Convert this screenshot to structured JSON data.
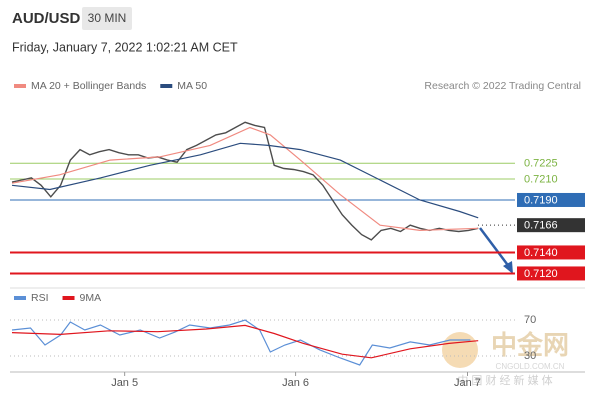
{
  "header": {
    "symbol": "AUD/USD",
    "timeframe": "30 MIN",
    "datetime": "Friday, January 7, 2022 1:02:21 AM CET",
    "source": "Research © 2022 Trading Central"
  },
  "watermark": {
    "brand": "中金网",
    "site": "CNGOLD.COM.CN",
    "tagline": "中 国 财 经 新 媒 体"
  },
  "chart_data": [
    {
      "type": "line",
      "xlim": [
        0,
        59
      ],
      "ylim": [
        0.7109,
        0.729
      ],
      "series": [
        {
          "color": "#4d4d4d",
          "x": [
            0,
            1,
            2,
            3,
            4,
            5,
            6,
            7,
            8,
            9,
            10,
            11,
            12,
            13,
            14,
            15,
            16,
            17,
            18,
            19,
            20,
            21,
            22,
            23,
            24,
            25,
            26,
            27,
            28,
            29,
            30,
            31,
            32,
            33,
            34,
            35,
            36,
            37,
            38,
            39,
            40,
            41,
            42,
            43,
            44,
            45,
            46,
            47,
            48
          ],
          "values": [
            0.7207,
            0.7209,
            0.7211,
            0.7204,
            0.7193,
            0.7204,
            0.7228,
            0.7238,
            0.7233,
            0.7236,
            0.7238,
            0.7235,
            0.7233,
            0.7233,
            0.723,
            0.7231,
            0.7228,
            0.7226,
            0.7238,
            0.7242,
            0.7247,
            0.7252,
            0.7254,
            0.7259,
            0.7264,
            0.7261,
            0.7259,
            0.7223,
            0.722,
            0.7219,
            0.7217,
            0.7214,
            0.7204,
            0.719,
            0.7176,
            0.7166,
            0.7157,
            0.7152,
            0.7161,
            0.7163,
            0.716,
            0.7166,
            0.7163,
            0.7161,
            0.7163,
            0.7161,
            0.716,
            0.7161,
            0.7163
          ]
        },
        {
          "name": "MA 20 + Bollinger Bands",
          "color": "#f08a80",
          "x": [
            0,
            4.9,
            10.1,
            15.2,
            20.4,
            24.5,
            26.6,
            29.7,
            33.8,
            37.9,
            42,
            48
          ],
          "values": [
            0.7206,
            0.7214,
            0.7228,
            0.7231,
            0.7242,
            0.7259,
            0.7252,
            0.7228,
            0.7195,
            0.7166,
            0.7161,
            0.7163
          ]
        },
        {
          "name": "MA 50",
          "color": "#2b4c7e",
          "x": [
            0,
            3.9,
            9.1,
            14.2,
            19.4,
            23.5,
            26.4,
            29.7,
            33.8,
            37.9,
            42,
            46.1,
            48
          ],
          "values": [
            0.7204,
            0.72,
            0.7211,
            0.7223,
            0.7233,
            0.7244,
            0.7242,
            0.7238,
            0.7228,
            0.7209,
            0.719,
            0.7179,
            0.7173
          ]
        }
      ],
      "levels": [
        {
          "value": 0.7225,
          "label": "0.7225",
          "color": "#9ccc65",
          "boxed": false
        },
        {
          "value": 0.721,
          "label": "0.7210",
          "color": "#9ccc65",
          "boxed": false
        },
        {
          "value": 0.719,
          "label": "0.7190",
          "color": "#2f6db5",
          "boxed": true
        },
        {
          "value": 0.7166,
          "label": "0.7166",
          "color": "#333333",
          "boxed": true,
          "dotted": true
        },
        {
          "value": 0.714,
          "label": "0.7140",
          "color": "#e0161e",
          "boxed": true
        },
        {
          "value": 0.712,
          "label": "0.7120",
          "color": "#e0161e",
          "boxed": true
        }
      ]
    },
    {
      "type": "line",
      "xlim": [
        0,
        59
      ],
      "ylim": [
        12.2,
        92.2
      ],
      "yticks": [
        70,
        30
      ],
      "xticks": [
        {
          "value": 11.6,
          "label": "Jan 5"
        },
        {
          "value": 29.2,
          "label": "Jan 6"
        },
        {
          "value": 46.9,
          "label": "Jan 7"
        }
      ],
      "series": [
        {
          "name": "RSI",
          "color": "#5b8fd6",
          "x": [
            0,
            1.9,
            3.4,
            5,
            6,
            7.5,
            9.1,
            11.1,
            13.2,
            15.2,
            16.8,
            18.3,
            20.4,
            22.4,
            24,
            25.5,
            26.6,
            28.1,
            29.7,
            31.7,
            33.8,
            35.8,
            37.1,
            38.9,
            41,
            43,
            45.1,
            47.2
          ],
          "values": [
            58.9,
            61.1,
            42.2,
            53.3,
            67.8,
            58.9,
            64.4,
            53.3,
            58.9,
            50,
            56.7,
            64.4,
            61.1,
            64.4,
            70,
            58.9,
            34.4,
            42.2,
            47.8,
            36.7,
            27.8,
            20,
            42.2,
            38.9,
            45.6,
            42.2,
            47.8,
            47.8
          ]
        },
        {
          "name": "9MA",
          "color": "#e0161e",
          "x": [
            0,
            5,
            10,
            15,
            20,
            24,
            27,
            30,
            34,
            37,
            41,
            45,
            48
          ],
          "values": [
            56,
            54,
            58,
            57,
            60,
            64,
            55,
            44,
            32,
            28,
            38,
            44,
            47
          ]
        }
      ]
    }
  ]
}
